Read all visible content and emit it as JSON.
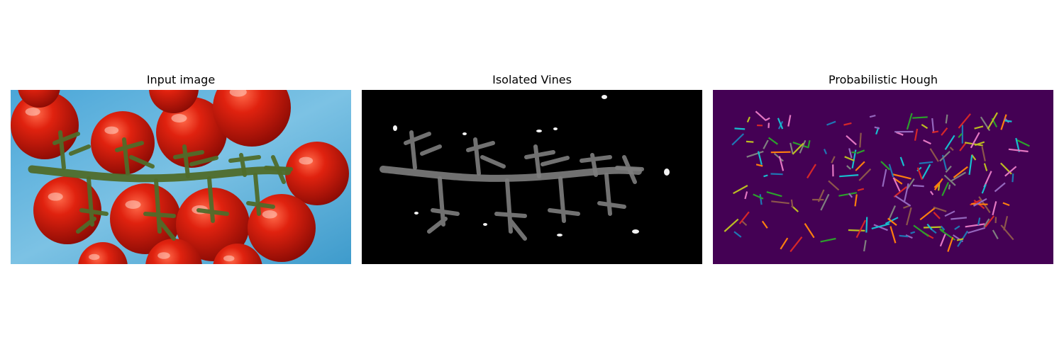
{
  "panels": [
    {
      "title": "Input image"
    },
    {
      "title": "Isolated Vines"
    },
    {
      "title": "Probabilistic Hough"
    }
  ],
  "colors": {
    "background": "#ffffff",
    "input_tray_blue": "#5aaed6",
    "tomato_red": "#d81a10",
    "vine_green": "#556b2f",
    "vines_background": "#000000",
    "vines_gray": "#8a8a8a",
    "hough_background": "#440154",
    "hough_line_palette": [
      "#1f77b4",
      "#ff7f0e",
      "#2ca02c",
      "#d62728",
      "#9467bd",
      "#8c564b",
      "#e377c2",
      "#7f7f7f",
      "#bcbd22",
      "#17becf"
    ]
  }
}
